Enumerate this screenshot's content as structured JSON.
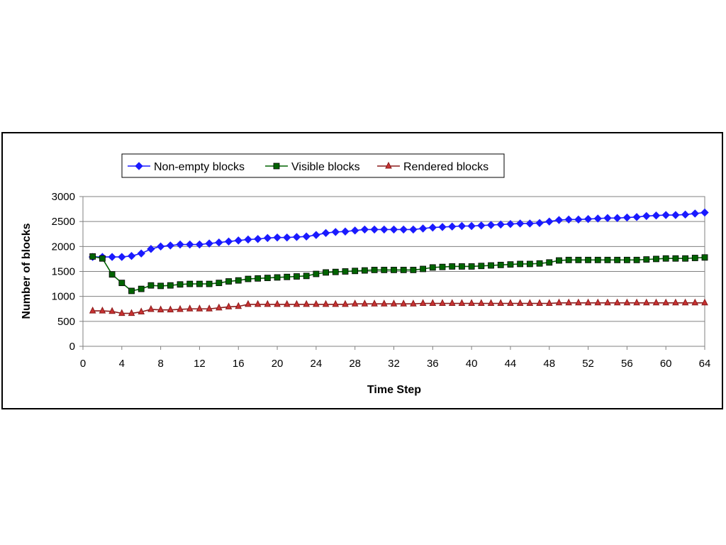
{
  "chart_data": {
    "type": "line",
    "xlabel": "Time Step",
    "ylabel": "Number of blocks",
    "xlim": [
      0,
      64
    ],
    "ylim": [
      0,
      3000
    ],
    "xticks": [
      "0",
      "4",
      "8",
      "12",
      "16",
      "20",
      "24",
      "28",
      "32",
      "36",
      "40",
      "44",
      "48",
      "52",
      "56",
      "60",
      "64"
    ],
    "yticks": [
      "0",
      "500",
      "1000",
      "1500",
      "2000",
      "2500",
      "3000"
    ],
    "grid": "horizontal",
    "legend_position": "top",
    "x": [
      1,
      2,
      3,
      4,
      5,
      6,
      7,
      8,
      9,
      10,
      11,
      12,
      13,
      14,
      15,
      16,
      17,
      18,
      19,
      20,
      21,
      22,
      23,
      24,
      25,
      26,
      27,
      28,
      29,
      30,
      31,
      32,
      33,
      34,
      35,
      36,
      37,
      38,
      39,
      40,
      41,
      42,
      43,
      44,
      45,
      46,
      47,
      48,
      49,
      50,
      51,
      52,
      53,
      54,
      55,
      56,
      57,
      58,
      59,
      60,
      61,
      62,
      63,
      64
    ],
    "series": [
      {
        "name": "Non-empty blocks",
        "color": "#1a1aff",
        "marker": "diamond",
        "values": [
          1790,
          1790,
          1790,
          1790,
          1810,
          1860,
          1950,
          2000,
          2020,
          2040,
          2040,
          2040,
          2060,
          2080,
          2100,
          2120,
          2140,
          2150,
          2170,
          2180,
          2180,
          2190,
          2200,
          2230,
          2270,
          2290,
          2300,
          2320,
          2340,
          2340,
          2340,
          2340,
          2340,
          2340,
          2360,
          2380,
          2390,
          2400,
          2410,
          2410,
          2420,
          2430,
          2440,
          2450,
          2460,
          2460,
          2470,
          2500,
          2530,
          2540,
          2540,
          2550,
          2560,
          2570,
          2570,
          2580,
          2590,
          2610,
          2620,
          2630,
          2630,
          2640,
          2660,
          2680
        ]
      },
      {
        "name": "Visible blocks",
        "color": "#006400",
        "marker": "square",
        "values": [
          1800,
          1760,
          1440,
          1270,
          1110,
          1150,
          1220,
          1210,
          1220,
          1240,
          1250,
          1250,
          1250,
          1270,
          1300,
          1320,
          1350,
          1360,
          1370,
          1380,
          1390,
          1400,
          1410,
          1450,
          1480,
          1490,
          1500,
          1510,
          1520,
          1530,
          1530,
          1530,
          1530,
          1530,
          1550,
          1580,
          1590,
          1600,
          1600,
          1600,
          1610,
          1620,
          1630,
          1640,
          1650,
          1650,
          1660,
          1680,
          1720,
          1730,
          1730,
          1730,
          1730,
          1730,
          1730,
          1730,
          1730,
          1740,
          1750,
          1760,
          1760,
          1760,
          1770,
          1780
        ]
      },
      {
        "name": "Rendered blocks",
        "color": "#8b1a1a",
        "marker": "triangle",
        "values": [
          710,
          710,
          700,
          660,
          660,
          690,
          740,
          730,
          730,
          740,
          750,
          750,
          750,
          770,
          790,
          800,
          840,
          840,
          840,
          840,
          840,
          840,
          840,
          840,
          840,
          840,
          840,
          850,
          850,
          850,
          850,
          850,
          850,
          850,
          860,
          860,
          860,
          860,
          860,
          860,
          860,
          860,
          860,
          860,
          860,
          860,
          860,
          860,
          870,
          870,
          870,
          870,
          870,
          870,
          870,
          870,
          870,
          870,
          870,
          870,
          870,
          870,
          870,
          870
        ]
      }
    ]
  }
}
